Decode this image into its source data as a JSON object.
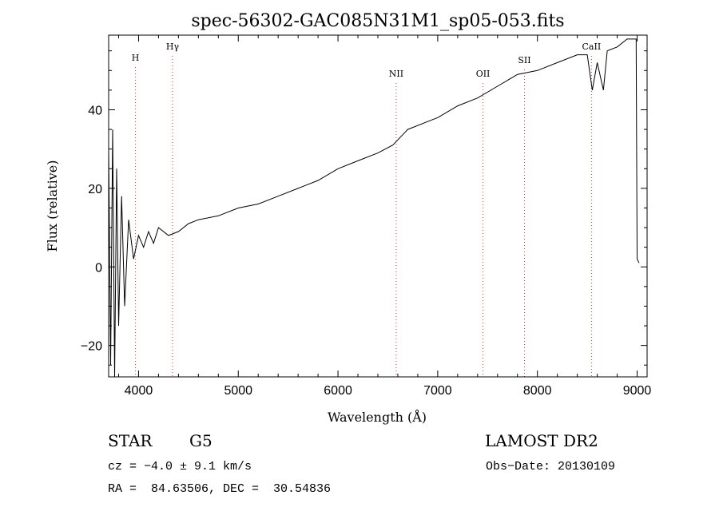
{
  "chart_data": {
    "type": "line",
    "title": "spec-56302-GAC085N31M1_sp05-053.fits",
    "xlabel": "Wavelength (Å)",
    "ylabel": "Flux (relative)",
    "xlim": [
      3700,
      9100
    ],
    "ylim": [
      -28,
      59
    ],
    "xticks": [
      4000,
      5000,
      6000,
      7000,
      8000,
      9000
    ],
    "yticks": [
      -20,
      0,
      20,
      40
    ],
    "grid": false,
    "line_color": "#000000",
    "marker_color": "#cc3333",
    "spectral_lines": [
      {
        "label": "H",
        "x": 3969
      },
      {
        "label": "Hγ",
        "x": 4341
      },
      {
        "label": "NII",
        "x": 6584
      },
      {
        "label": "OII",
        "x": 7454
      },
      {
        "label": "SII",
        "x": 7870
      },
      {
        "label": "CaII",
        "x": 8542
      }
    ],
    "series": [
      {
        "x": [
          3700,
          3720,
          3740,
          3760,
          3780,
          3800,
          3830,
          3860,
          3900,
          3950,
          4000,
          4050,
          4100,
          4150,
          4200,
          4300,
          4400,
          4500,
          4600,
          4800,
          5000,
          5200,
          5400,
          5600,
          5800,
          6000,
          6200,
          6400,
          6550,
          6700,
          6900,
          7000,
          7200,
          7400,
          7600,
          7800,
          8000,
          8200,
          8400,
          8500,
          8550,
          8600,
          8662,
          8700,
          8800,
          8900,
          8990,
          9000,
          9020
        ],
        "y": [
          30,
          -25,
          35,
          -28,
          25,
          -15,
          18,
          -10,
          12,
          2,
          8,
          5,
          9,
          6,
          10,
          8,
          9,
          11,
          12,
          13,
          15,
          16,
          18,
          20,
          22,
          25,
          27,
          29,
          31,
          35,
          37,
          38,
          41,
          43,
          46,
          49,
          50,
          52,
          54,
          54,
          45,
          52,
          45,
          55,
          56,
          58,
          58,
          2,
          1
        ]
      }
    ]
  },
  "info": {
    "object_class": "STAR",
    "subclass": "G5",
    "survey": "LAMOST DR2",
    "redshift": "cz = −4.0 ± 9.1 km/s",
    "obs_date": "Obs−Date: 20130109",
    "coords": "RA =  84.63506, DEC =  30.54836"
  }
}
